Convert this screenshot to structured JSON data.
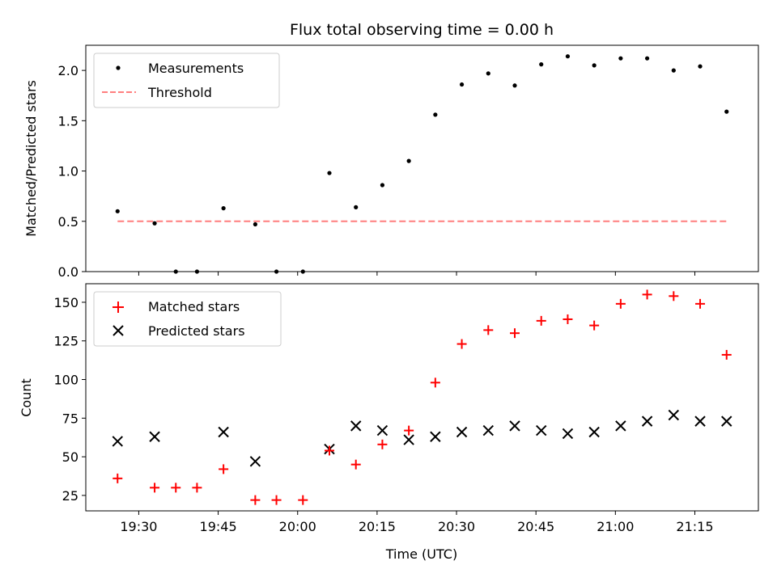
{
  "title": "Flux total observing time = 0.00 h",
  "colors": {
    "measurements": "#000000",
    "threshold": "#ff7f7f",
    "matched": "#ff0000",
    "predicted": "#000000"
  },
  "chart_data": [
    {
      "type": "scatter",
      "panel": "top",
      "xlabel": "",
      "ylabel": "Matched/Predicted stars",
      "xlim": [
        "19:20",
        "21:27"
      ],
      "ylim": [
        0,
        2.25
      ],
      "yticks": [
        "0.0",
        "0.5",
        "1.0",
        "1.5",
        "2.0"
      ],
      "legend": "top-left",
      "series": [
        {
          "name": "Measurements",
          "marker": "dot",
          "x": [
            "19:26",
            "19:33",
            "19:37",
            "19:41",
            "19:46",
            "19:52",
            "19:56",
            "20:01",
            "20:06",
            "20:11",
            "20:16",
            "20:21",
            "20:26",
            "20:31",
            "20:36",
            "20:41",
            "20:46",
            "20:51",
            "20:56",
            "21:01",
            "21:06",
            "21:11",
            "21:16",
            "21:21"
          ],
          "y": [
            0.6,
            0.48,
            0.0,
            0.0,
            0.63,
            0.47,
            0.0,
            0.0,
            0.98,
            0.64,
            0.86,
            1.1,
            1.56,
            1.86,
            1.97,
            1.85,
            2.06,
            2.14,
            2.05,
            2.12,
            2.12,
            2.0,
            2.04,
            1.59
          ]
        },
        {
          "name": "Threshold",
          "line": "dashed",
          "x": [
            "19:26",
            "21:21"
          ],
          "y": [
            0.5,
            0.5
          ]
        }
      ]
    },
    {
      "type": "scatter",
      "panel": "bottom",
      "xlabel": "Time (UTC)",
      "ylabel": "Count",
      "xlim": [
        "19:20",
        "21:27"
      ],
      "ylim": [
        15,
        162
      ],
      "xticks": [
        "19:30",
        "19:45",
        "20:00",
        "20:15",
        "20:30",
        "20:45",
        "21:00",
        "21:15"
      ],
      "yticks": [
        "25",
        "50",
        "75",
        "100",
        "125",
        "150"
      ],
      "legend": "top-left",
      "series": [
        {
          "name": "Matched stars",
          "marker": "plus",
          "x": [
            "19:26",
            "19:33",
            "19:37",
            "19:41",
            "19:46",
            "19:52",
            "19:56",
            "20:01",
            "20:06",
            "20:11",
            "20:16",
            "20:21",
            "20:26",
            "20:31",
            "20:36",
            "20:41",
            "20:46",
            "20:51",
            "20:56",
            "21:01",
            "21:06",
            "21:11",
            "21:16",
            "21:21"
          ],
          "y": [
            36,
            30,
            30,
            30,
            42,
            22,
            22,
            22,
            54,
            45,
            58,
            67,
            98,
            123,
            132,
            130,
            138,
            139,
            135,
            149,
            155,
            154,
            149,
            116
          ]
        },
        {
          "name": "Predicted stars",
          "marker": "x",
          "x": [
            "19:26",
            "19:33",
            "19:46",
            "19:52",
            "20:06",
            "20:11",
            "20:16",
            "20:21",
            "20:26",
            "20:31",
            "20:36",
            "20:41",
            "20:46",
            "20:51",
            "20:56",
            "21:01",
            "21:06",
            "21:11",
            "21:16",
            "21:21"
          ],
          "y": [
            60,
            63,
            66,
            47,
            55,
            70,
            67,
            61,
            63,
            66,
            67,
            70,
            67,
            65,
            66,
            70,
            73,
            77,
            73,
            73
          ]
        }
      ]
    }
  ]
}
